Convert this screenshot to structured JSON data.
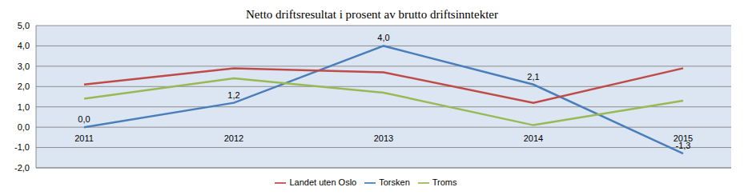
{
  "chart_data": {
    "type": "line",
    "title": "Netto driftsresultat i prosent av brutto driftsinntekter",
    "categories": [
      "2011",
      "2012",
      "2013",
      "2014",
      "2015"
    ],
    "series": [
      {
        "name": "Torsken",
        "color": "#4a7ebb",
        "values": [
          0.0,
          1.2,
          4.0,
          2.1,
          -1.3
        ],
        "data_labels": true,
        "value_labels": [
          "0,0",
          "1,2",
          "4,0",
          "2,1",
          "-1,3"
        ]
      },
      {
        "name": "Landet uten Oslo",
        "color": "#be4b48",
        "values": [
          2.1,
          2.9,
          2.7,
          1.2,
          2.9
        ]
      },
      {
        "name": "Troms",
        "color": "#98b954",
        "values": [
          1.4,
          2.4,
          1.7,
          0.1,
          1.3
        ]
      }
    ],
    "ylim": [
      -2,
      5
    ],
    "yticks": [
      {
        "value": -2,
        "label": "-2,0"
      },
      {
        "value": -1,
        "label": "-1,0"
      },
      {
        "value": 0,
        "label": "0,0"
      },
      {
        "value": 1,
        "label": "1,0"
      },
      {
        "value": 2,
        "label": "2,0"
      },
      {
        "value": 3,
        "label": "3,0"
      },
      {
        "value": 4,
        "label": "4,0"
      },
      {
        "value": 5,
        "label": "5,0"
      }
    ],
    "grid": true,
    "legend": "bottom"
  }
}
